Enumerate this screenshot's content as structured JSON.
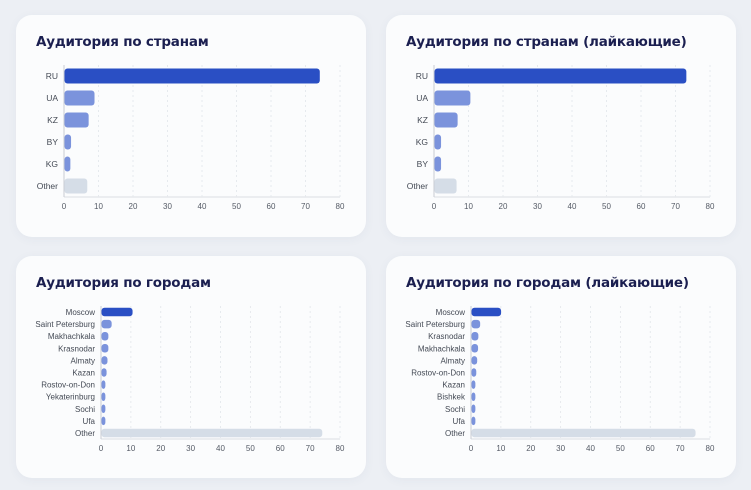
{
  "colors": {
    "primary": "#2a4fc4",
    "secondary": "#7b93dc",
    "other": "#d5dde7",
    "title": "#1b1f50"
  },
  "chart_data": [
    {
      "type": "bar",
      "orientation": "horizontal",
      "title": "Аудитория по странам",
      "categories": [
        "RU",
        "UA",
        "KZ",
        "BY",
        "KG",
        "Other"
      ],
      "values": [
        74,
        8.7,
        7,
        1.9,
        1.7,
        6.6
      ],
      "xlim": [
        0,
        80
      ],
      "xticks": [
        "0",
        "10",
        "20",
        "30",
        "40",
        "50",
        "60",
        "70",
        "80"
      ],
      "grid": true
    },
    {
      "type": "bar",
      "orientation": "horizontal",
      "title": "Аудитория по странам (лайкающие)",
      "categories": [
        "RU",
        "UA",
        "KZ",
        "KG",
        "BY",
        "Other"
      ],
      "values": [
        73,
        10.4,
        6.7,
        1.9,
        1.9,
        6.4
      ],
      "xlim": [
        0,
        80
      ],
      "xticks": [
        "0",
        "10",
        "20",
        "30",
        "40",
        "50",
        "60",
        "70",
        "80"
      ],
      "grid": true
    },
    {
      "type": "bar",
      "orientation": "horizontal",
      "title": "Аудитория по городам",
      "categories": [
        "Moscow",
        "Saint Petersburg",
        "Makhachkala",
        "Krasnodar",
        "Almaty",
        "Kazan",
        "Rostov-on-Don",
        "Yekaterinburg",
        "Sochi",
        "Ufa",
        "Other"
      ],
      "values": [
        10.4,
        3.4,
        2.3,
        2.3,
        2.0,
        1.7,
        1.3,
        1.3,
        1.3,
        1.3,
        73.9
      ],
      "xlim": [
        0,
        80
      ],
      "xticks": [
        "0",
        "10",
        "20",
        "30",
        "40",
        "50",
        "60",
        "70",
        "80"
      ],
      "grid": true
    },
    {
      "type": "bar",
      "orientation": "horizontal",
      "title": "Аудитория по городам (лайкающие)",
      "categories": [
        "Moscow",
        "Saint Petersburg",
        "Krasnodar",
        "Makhachkala",
        "Almaty",
        "Rostov-on-Don",
        "Kazan",
        "Bishkek",
        "Sochi",
        "Ufa",
        "Other"
      ],
      "values": [
        9.9,
        2.9,
        2.3,
        2.2,
        1.9,
        1.6,
        1.3,
        1.3,
        1.3,
        1.3,
        75
      ],
      "xlim": [
        0,
        80
      ],
      "xticks": [
        "0",
        "10",
        "20",
        "30",
        "40",
        "50",
        "60",
        "70",
        "80"
      ],
      "grid": true
    }
  ]
}
